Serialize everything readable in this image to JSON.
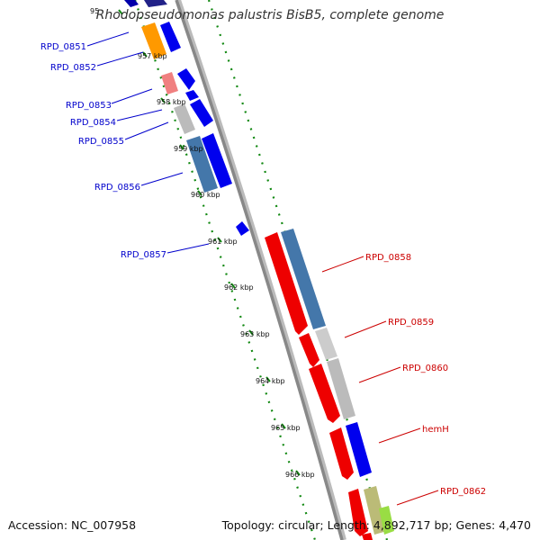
{
  "title": "Rhodopseudomonas palustris BisB5, complete genome",
  "accession": "Accession: NC_007958",
  "topology": "Topology: circular; Length: 4,892,717 bp; Genes: 4,470",
  "colors": {
    "forward_label": "#0000cc",
    "reverse_label": "#cc0000",
    "tick": "#118811",
    "backbone": "#888888"
  },
  "kbp_ticks": [
    "95",
    "957 kbp",
    "958 kbp",
    "959 kbp",
    "960 kbp",
    "961 kbp",
    "962 kbp",
    "963 kbp",
    "964 kbp",
    "965 kbp",
    "966 kbp"
  ],
  "forward_labels": [
    "RPD_0851",
    "RPD_0852",
    "RPD_0853",
    "RPD_0854",
    "RPD_0855",
    "RPD_0856",
    "RPD_0857"
  ],
  "reverse_labels": [
    "RPD_0858",
    "RPD_0859",
    "RPD_0860",
    "hemH",
    "RPD_0862"
  ]
}
